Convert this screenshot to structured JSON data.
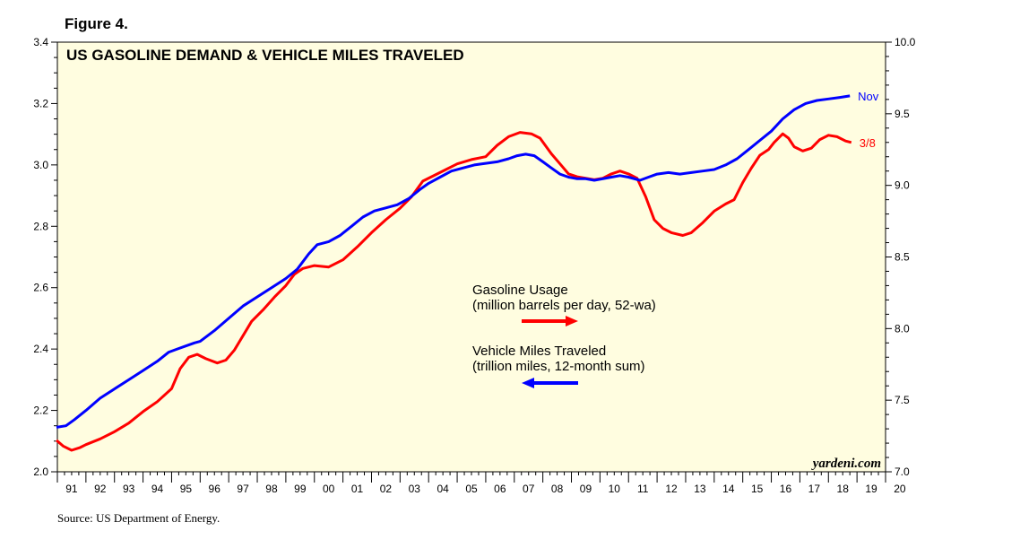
{
  "figure_label": "Figure 4.",
  "source": "Source: US Department of Energy.",
  "watermark": "yardeni.com",
  "chart_data": {
    "type": "line",
    "title": "US GASOLINE DEMAND & VEHICLE MILES TRAVELED",
    "x_tick_labels": [
      "91",
      "92",
      "93",
      "94",
      "95",
      "96",
      "97",
      "98",
      "99",
      "00",
      "01",
      "02",
      "03",
      "04",
      "05",
      "06",
      "07",
      "08",
      "09",
      "10",
      "11",
      "12",
      "13",
      "14",
      "15",
      "16",
      "17",
      "18",
      "19",
      "20"
    ],
    "xlim": [
      1991,
      2020
    ],
    "left_axis": {
      "ylim": [
        2.0,
        3.4
      ],
      "ticks": [
        "2.0",
        "2.2",
        "2.4",
        "2.6",
        "2.8",
        "3.0",
        "3.2",
        "3.4"
      ]
    },
    "right_axis": {
      "ylim": [
        7.0,
        10.0
      ],
      "ticks": [
        "7.0",
        "7.5",
        "8.0",
        "8.5",
        "9.0",
        "9.5",
        "10.0"
      ]
    },
    "background_color": "#fffde0",
    "series": [
      {
        "name": "Gasoline Usage",
        "subtitle": "(million barrels per day, 52-wa)",
        "axis": "right",
        "color": "#ff0000",
        "end_label": "3/8",
        "arrow": "right",
        "points": [
          [
            1990.97,
            7.22
          ],
          [
            1991.2,
            7.18
          ],
          [
            1991.5,
            7.15
          ],
          [
            1991.8,
            7.17
          ],
          [
            1992.0,
            7.19
          ],
          [
            1992.5,
            7.23
          ],
          [
            1993.0,
            7.28
          ],
          [
            1993.5,
            7.34
          ],
          [
            1994.0,
            7.42
          ],
          [
            1994.5,
            7.49
          ],
          [
            1995.0,
            7.58
          ],
          [
            1995.3,
            7.72
          ],
          [
            1995.6,
            7.8
          ],
          [
            1995.9,
            7.82
          ],
          [
            1996.2,
            7.79
          ],
          [
            1996.6,
            7.76
          ],
          [
            1996.9,
            7.78
          ],
          [
            1997.2,
            7.85
          ],
          [
            1997.5,
            7.95
          ],
          [
            1997.8,
            8.05
          ],
          [
            1998.2,
            8.13
          ],
          [
            1998.6,
            8.22
          ],
          [
            1999.0,
            8.3
          ],
          [
            1999.3,
            8.38
          ],
          [
            1999.6,
            8.42
          ],
          [
            2000.0,
            8.44
          ],
          [
            2000.5,
            8.43
          ],
          [
            2001.0,
            8.48
          ],
          [
            2001.5,
            8.57
          ],
          [
            2002.0,
            8.67
          ],
          [
            2002.5,
            8.76
          ],
          [
            2003.0,
            8.84
          ],
          [
            2003.4,
            8.92
          ],
          [
            2003.8,
            9.03
          ],
          [
            2004.2,
            9.07
          ],
          [
            2004.6,
            9.11
          ],
          [
            2005.0,
            9.15
          ],
          [
            2005.5,
            9.18
          ],
          [
            2006.0,
            9.2
          ],
          [
            2006.4,
            9.28
          ],
          [
            2006.8,
            9.34
          ],
          [
            2007.2,
            9.37
          ],
          [
            2007.6,
            9.36
          ],
          [
            2007.9,
            9.33
          ],
          [
            2008.3,
            9.22
          ],
          [
            2008.6,
            9.15
          ],
          [
            2008.9,
            9.08
          ],
          [
            2009.2,
            9.06
          ],
          [
            2009.5,
            9.05
          ],
          [
            2009.8,
            9.04
          ],
          [
            2010.1,
            9.05
          ],
          [
            2010.4,
            9.08
          ],
          [
            2010.7,
            9.1
          ],
          [
            2011.0,
            9.08
          ],
          [
            2011.3,
            9.05
          ],
          [
            2011.6,
            8.92
          ],
          [
            2011.9,
            8.76
          ],
          [
            2012.2,
            8.7
          ],
          [
            2012.5,
            8.67
          ],
          [
            2012.9,
            8.65
          ],
          [
            2013.2,
            8.67
          ],
          [
            2013.6,
            8.74
          ],
          [
            2014.0,
            8.82
          ],
          [
            2014.4,
            8.87
          ],
          [
            2014.7,
            8.9
          ],
          [
            2015.0,
            9.02
          ],
          [
            2015.3,
            9.12
          ],
          [
            2015.6,
            9.21
          ],
          [
            2015.9,
            9.25
          ],
          [
            2016.1,
            9.3
          ],
          [
            2016.4,
            9.36
          ],
          [
            2016.6,
            9.33
          ],
          [
            2016.8,
            9.27
          ],
          [
            2017.1,
            9.24
          ],
          [
            2017.4,
            9.26
          ],
          [
            2017.7,
            9.32
          ],
          [
            2018.0,
            9.35
          ],
          [
            2018.3,
            9.34
          ],
          [
            2018.6,
            9.31
          ],
          [
            2018.8,
            9.3
          ]
        ]
      },
      {
        "name": "Vehicle Miles Traveled",
        "subtitle": "(trillion miles, 12-month sum)",
        "axis": "left",
        "color": "#0000ff",
        "end_label": "Nov",
        "arrow": "left",
        "points": [
          [
            1990.97,
            2.145
          ],
          [
            1991.3,
            2.15
          ],
          [
            1991.6,
            2.17
          ],
          [
            1992.0,
            2.2
          ],
          [
            1992.5,
            2.24
          ],
          [
            1993.0,
            2.27
          ],
          [
            1993.5,
            2.3
          ],
          [
            1994.0,
            2.33
          ],
          [
            1994.5,
            2.36
          ],
          [
            1994.9,
            2.39
          ],
          [
            1995.2,
            2.4
          ],
          [
            1995.5,
            2.41
          ],
          [
            1995.8,
            2.42
          ],
          [
            1996.0,
            2.425
          ],
          [
            1996.5,
            2.46
          ],
          [
            1997.0,
            2.5
          ],
          [
            1997.5,
            2.54
          ],
          [
            1998.0,
            2.57
          ],
          [
            1998.5,
            2.6
          ],
          [
            1999.0,
            2.63
          ],
          [
            1999.4,
            2.66
          ],
          [
            1999.8,
            2.71
          ],
          [
            2000.1,
            2.74
          ],
          [
            2000.5,
            2.75
          ],
          [
            2000.9,
            2.77
          ],
          [
            2001.3,
            2.8
          ],
          [
            2001.7,
            2.83
          ],
          [
            2002.1,
            2.85
          ],
          [
            2002.5,
            2.86
          ],
          [
            2002.9,
            2.87
          ],
          [
            2003.3,
            2.89
          ],
          [
            2003.7,
            2.92
          ],
          [
            2004.0,
            2.94
          ],
          [
            2004.4,
            2.96
          ],
          [
            2004.8,
            2.98
          ],
          [
            2005.2,
            2.99
          ],
          [
            2005.6,
            3.0
          ],
          [
            2006.0,
            3.005
          ],
          [
            2006.4,
            3.01
          ],
          [
            2006.8,
            3.02
          ],
          [
            2007.1,
            3.03
          ],
          [
            2007.4,
            3.035
          ],
          [
            2007.7,
            3.03
          ],
          [
            2008.0,
            3.01
          ],
          [
            2008.3,
            2.99
          ],
          [
            2008.6,
            2.97
          ],
          [
            2008.9,
            2.96
          ],
          [
            2009.2,
            2.955
          ],
          [
            2009.5,
            2.955
          ],
          [
            2009.8,
            2.95
          ],
          [
            2010.1,
            2.955
          ],
          [
            2010.4,
            2.96
          ],
          [
            2010.7,
            2.965
          ],
          [
            2011.0,
            2.96
          ],
          [
            2011.4,
            2.95
          ],
          [
            2011.7,
            2.96
          ],
          [
            2012.0,
            2.97
          ],
          [
            2012.4,
            2.975
          ],
          [
            2012.8,
            2.97
          ],
          [
            2013.2,
            2.975
          ],
          [
            2013.6,
            2.98
          ],
          [
            2014.0,
            2.985
          ],
          [
            2014.4,
            3.0
          ],
          [
            2014.8,
            3.02
          ],
          [
            2015.2,
            3.05
          ],
          [
            2015.6,
            3.08
          ],
          [
            2016.0,
            3.11
          ],
          [
            2016.4,
            3.15
          ],
          [
            2016.8,
            3.18
          ],
          [
            2017.2,
            3.2
          ],
          [
            2017.6,
            3.21
          ],
          [
            2018.0,
            3.215
          ],
          [
            2018.4,
            3.22
          ],
          [
            2018.75,
            3.225
          ]
        ]
      }
    ]
  }
}
